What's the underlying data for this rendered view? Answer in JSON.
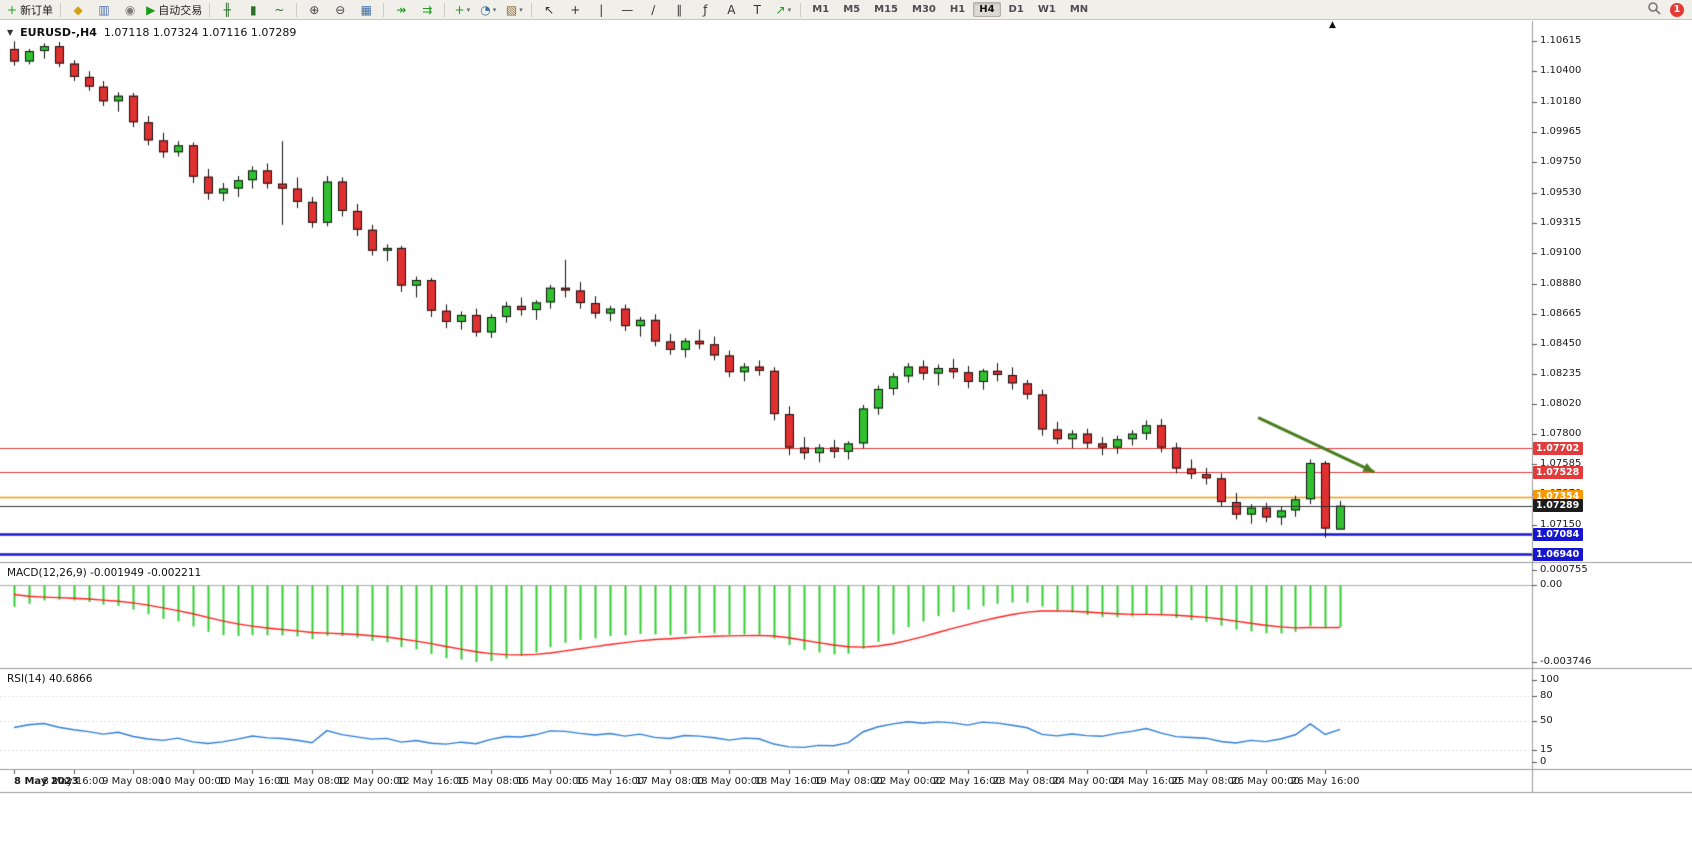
{
  "toolbar": {
    "groups": [
      {
        "items": [
          {
            "name": "new-order-button",
            "glyph": "+",
            "glyph_color": "#1a9c1a",
            "label": "新订单"
          }
        ]
      },
      {
        "items": [
          {
            "name": "market-watch-button",
            "glyph": "◆",
            "glyph_color": "#d4a017"
          },
          {
            "name": "data-window-button",
            "glyph": "▥",
            "glyph_color": "#4a6fb5"
          },
          {
            "name": "navigator-button",
            "glyph": "◉",
            "glyph_color": "#7a7a7a"
          },
          {
            "name": "autotrading-button",
            "glyph": "▶",
            "glyph_color": "#1a9c1a",
            "label": "自动交易"
          }
        ]
      },
      {
        "items": [
          {
            "name": "bar-chart-button",
            "glyph": "╫",
            "glyph_color": "#2a6f2a"
          },
          {
            "name": "candlestick-chart-button",
            "glyph": "▮",
            "glyph_color": "#2a6f2a"
          },
          {
            "name": "line-chart-button",
            "glyph": "~",
            "glyph_color": "#2a6f2a"
          }
        ]
      },
      {
        "items": [
          {
            "name": "zoom-in-button",
            "glyph": "⊕",
            "glyph_color": "#444444"
          },
          {
            "name": "zoom-out-button",
            "glyph": "⊖",
            "glyph_color": "#444444"
          },
          {
            "name": "tile-windows-button",
            "glyph": "▦",
            "glyph_color": "#3a6ea5"
          }
        ]
      },
      {
        "items": [
          {
            "name": "auto-scroll-button",
            "glyph": "↠",
            "glyph_color": "#1a9c1a"
          },
          {
            "name": "chart-shift-button",
            "glyph": "⇉",
            "glyph_color": "#1a9c1a"
          }
        ]
      },
      {
        "items": [
          {
            "name": "indicators-button",
            "glyph": "+",
            "glyph_color": "#1a9c1a",
            "caret": true
          },
          {
            "name": "periods-button",
            "glyph": "◔",
            "glyph_color": "#3a6ea5",
            "caret": true
          },
          {
            "name": "templates-button",
            "glyph": "▧",
            "glyph_color": "#8a6d3b",
            "caret": true
          }
        ]
      },
      {
        "items": [
          {
            "name": "cursor-button",
            "glyph": "↖",
            "glyph_color": "#333333"
          },
          {
            "name": "crosshair-button",
            "glyph": "+",
            "glyph_color": "#333333"
          },
          {
            "name": "vertical-line-button",
            "glyph": "|",
            "glyph_color": "#333333"
          },
          {
            "name": "horizontal-line-button",
            "glyph": "—",
            "glyph_color": "#333333"
          },
          {
            "name": "trendline-button",
            "glyph": "∕",
            "glyph_color": "#333333"
          },
          {
            "name": "channel-button",
            "glyph": "∥",
            "glyph_color": "#333333"
          },
          {
            "name": "fibonacci-button",
            "glyph": "ƒ",
            "glyph_color": "#333333"
          },
          {
            "name": "text-button",
            "glyph": "A",
            "glyph_color": "#333333"
          },
          {
            "name": "text-label-button",
            "glyph": "T",
            "glyph_color": "#333333"
          },
          {
            "name": "arrows-button",
            "glyph": "↗",
            "glyph_color": "#1a9c1a",
            "caret": true
          }
        ]
      }
    ],
    "timeframes": {
      "items": [
        "M1",
        "M5",
        "M15",
        "M30",
        "H1",
        "H4",
        "D1",
        "W1",
        "MN"
      ],
      "active": "H4"
    },
    "right": {
      "search_name": "search-button",
      "badge_label": "1",
      "badge_color": "#e53935"
    }
  },
  "chart": {
    "menu_icon": "▼",
    "shift_marker": "▲",
    "symbol_label": "EURUSD-,H4",
    "ohlc_label": "1.07118 1.07324 1.07116 1.07289",
    "price_axis_ticks": [
      "1.10615",
      "1.10400",
      "1.10180",
      "1.09965",
      "1.09750",
      "1.09530",
      "1.09315",
      "1.09100",
      "1.08880",
      "1.08665",
      "1.08450",
      "1.08235",
      "1.08020",
      "1.07800",
      "1.07585",
      "1.07370",
      "1.07150",
      "1.06935"
    ],
    "hlines": [
      {
        "price": 1.07702,
        "label": "1.07702",
        "color": "#e23b3b",
        "width": 1
      },
      {
        "price": 1.07528,
        "label": "1.07528",
        "color": "#e23b3b",
        "width": 1
      },
      {
        "price": 1.07354,
        "label": "1.07354",
        "color": "#ff9800",
        "width": 1.5
      },
      {
        "price": 1.07289,
        "label": "1.07289",
        "color": "#333333",
        "width": 1,
        "role": "current-price",
        "tag_color": "#1c1c1c"
      },
      {
        "price": 1.07084,
        "label": "1.07084",
        "color": "#1616cf",
        "width": 2.5
      },
      {
        "price": 1.0694,
        "label": "1.06940",
        "color": "#1616cf",
        "width": 2.5
      }
    ],
    "arrow_object": {
      "from_bar": 83.5,
      "from_price": 1.0792,
      "to_bar": 91.3,
      "to_price": 1.0753,
      "color": "#4a7d20"
    }
  },
  "chart_data": {
    "type": "candlestick",
    "symbol": "EURUSD",
    "timeframe": "H4",
    "title": "EURUSD-,H4 1.07118 1.07324 1.07116 1.07289",
    "price_range": {
      "top": 1.1071,
      "bottom": 1.069
    },
    "style": {
      "bull_color": "#30c030",
      "bear_color": "#e03030",
      "wick_color": "#111111"
    },
    "candles": [
      [
        1.1056,
        1.10615,
        1.1044,
        1.1047
      ],
      [
        1.1047,
        1.1056,
        1.1045,
        1.10545
      ],
      [
        1.10545,
        1.106,
        1.1049,
        1.1058
      ],
      [
        1.1058,
        1.1061,
        1.1043,
        1.10455
      ],
      [
        1.10455,
        1.1048,
        1.1033,
        1.1036
      ],
      [
        1.1036,
        1.104,
        1.1026,
        1.1029
      ],
      [
        1.1029,
        1.1033,
        1.1015,
        1.10185
      ],
      [
        1.10185,
        1.1025,
        1.1011,
        1.10225
      ],
      [
        1.10225,
        1.10245,
        1.1,
        1.10035
      ],
      [
        1.10035,
        1.1008,
        1.0987,
        1.09905
      ],
      [
        1.09905,
        1.0996,
        1.0978,
        1.0982
      ],
      [
        1.0982,
        1.099,
        1.0979,
        1.0987
      ],
      [
        1.0987,
        1.0989,
        1.096,
        1.09645
      ],
      [
        1.09645,
        1.097,
        1.0948,
        1.09525
      ],
      [
        1.09525,
        1.096,
        1.0947,
        1.0956
      ],
      [
        1.0956,
        1.0965,
        1.095,
        1.0962
      ],
      [
        1.0962,
        1.0972,
        1.0956,
        1.0969
      ],
      [
        1.0969,
        1.0974,
        1.0956,
        1.09595
      ],
      [
        1.09595,
        1.099,
        1.093,
        1.0956
      ],
      [
        1.0956,
        1.0964,
        1.0942,
        1.09465
      ],
      [
        1.09465,
        1.095,
        1.0928,
        1.09315
      ],
      [
        1.09315,
        1.0965,
        1.0929,
        1.0961
      ],
      [
        1.0961,
        1.0964,
        1.0936,
        1.094
      ],
      [
        1.094,
        1.0945,
        1.0922,
        1.09265
      ],
      [
        1.09265,
        1.093,
        1.0908,
        1.09115
      ],
      [
        1.09115,
        1.0916,
        1.0904,
        1.09135
      ],
      [
        1.09135,
        1.0915,
        1.0882,
        1.08865
      ],
      [
        1.08865,
        1.0893,
        1.0878,
        1.08905
      ],
      [
        1.08905,
        1.0892,
        1.0864,
        1.08685
      ],
      [
        1.08685,
        1.0873,
        1.0856,
        1.08605
      ],
      [
        1.08605,
        1.0868,
        1.0855,
        1.08655
      ],
      [
        1.08655,
        1.087,
        1.085,
        1.0853
      ],
      [
        1.0853,
        1.0866,
        1.0849,
        1.0864
      ],
      [
        1.0864,
        1.0875,
        1.086,
        1.0872
      ],
      [
        1.0872,
        1.0878,
        1.0865,
        1.0869
      ],
      [
        1.0869,
        1.0876,
        1.0862,
        1.08745
      ],
      [
        1.08745,
        1.0887,
        1.087,
        1.0885
      ],
      [
        1.0885,
        1.0905,
        1.0878,
        1.0883
      ],
      [
        1.0883,
        1.0889,
        1.087,
        1.0874
      ],
      [
        1.0874,
        1.0879,
        1.0863,
        1.08665
      ],
      [
        1.08665,
        1.0872,
        1.0861,
        1.087
      ],
      [
        1.087,
        1.0873,
        1.0854,
        1.08575
      ],
      [
        1.08575,
        1.0864,
        1.085,
        1.0862
      ],
      [
        1.0862,
        1.0866,
        1.0843,
        1.08465
      ],
      [
        1.08465,
        1.0852,
        1.0837,
        1.08405
      ],
      [
        1.08405,
        1.0849,
        1.0835,
        1.0847
      ],
      [
        1.0847,
        1.0855,
        1.0841,
        1.08445
      ],
      [
        1.08445,
        1.085,
        1.0833,
        1.08365
      ],
      [
        1.08365,
        1.084,
        1.0821,
        1.08245
      ],
      [
        1.08245,
        1.0831,
        1.0818,
        1.08285
      ],
      [
        1.08285,
        1.0833,
        1.0822,
        1.08255
      ],
      [
        1.08255,
        1.0828,
        1.079,
        1.07945
      ],
      [
        1.07945,
        1.08,
        1.0765,
        1.07705
      ],
      [
        1.07705,
        1.0778,
        1.0762,
        1.07665
      ],
      [
        1.07665,
        1.0773,
        1.076,
        1.07705
      ],
      [
        1.07705,
        1.0776,
        1.0763,
        1.07675
      ],
      [
        1.07675,
        1.0775,
        1.0762,
        1.07735
      ],
      [
        1.07735,
        1.0801,
        1.077,
        1.07985
      ],
      [
        1.07985,
        1.0815,
        1.0794,
        1.08125
      ],
      [
        1.08125,
        1.0824,
        1.0808,
        1.08215
      ],
      [
        1.08215,
        1.0831,
        1.0817,
        1.08285
      ],
      [
        1.08285,
        1.0833,
        1.0819,
        1.08235
      ],
      [
        1.08235,
        1.083,
        1.0815,
        1.08275
      ],
      [
        1.08275,
        1.0834,
        1.082,
        1.08245
      ],
      [
        1.08245,
        1.0829,
        1.0813,
        1.08175
      ],
      [
        1.08175,
        1.0827,
        1.0812,
        1.08255
      ],
      [
        1.08255,
        1.0831,
        1.0818,
        1.08225
      ],
      [
        1.08225,
        1.0828,
        1.0812,
        1.08165
      ],
      [
        1.08165,
        1.0819,
        1.0805,
        1.08085
      ],
      [
        1.08085,
        1.0812,
        1.0779,
        1.07835
      ],
      [
        1.07835,
        1.0789,
        1.0773,
        1.07765
      ],
      [
        1.07765,
        1.0783,
        1.077,
        1.07805
      ],
      [
        1.07805,
        1.0784,
        1.077,
        1.07735
      ],
      [
        1.07735,
        1.0778,
        1.0765,
        1.07705
      ],
      [
        1.07705,
        1.0779,
        1.0766,
        1.07765
      ],
      [
        1.07765,
        1.0783,
        1.0772,
        1.07805
      ],
      [
        1.07805,
        1.079,
        1.0776,
        1.07865
      ],
      [
        1.07865,
        1.0791,
        1.0767,
        1.07705
      ],
      [
        1.07705,
        1.0774,
        1.0752,
        1.07555
      ],
      [
        1.07555,
        1.0762,
        1.0748,
        1.07515
      ],
      [
        1.07515,
        1.0756,
        1.0744,
        1.07485
      ],
      [
        1.07485,
        1.0752,
        1.0728,
        1.07315
      ],
      [
        1.07315,
        1.0738,
        1.0719,
        1.07225
      ],
      [
        1.07225,
        1.073,
        1.0716,
        1.07275
      ],
      [
        1.07275,
        1.0731,
        1.0717,
        1.07205
      ],
      [
        1.07205,
        1.0728,
        1.0715,
        1.07255
      ],
      [
        1.07255,
        1.0736,
        1.0721,
        1.07335
      ],
      [
        1.07335,
        1.0762,
        1.073,
        1.07595
      ],
      [
        1.07595,
        1.0761,
        1.0706,
        1.07125
      ],
      [
        1.07118,
        1.07324,
        1.07116,
        1.07289
      ]
    ],
    "time_labels": {
      "every_n_bars": 4,
      "labels": [
        "8 May 2023",
        "8 May 16:00",
        "9 May 08:00",
        "10 May 00:00",
        "10 May 16:00",
        "11 May 08:00",
        "12 May 00:00",
        "12 May 16:00",
        "15 May 08:00",
        "16 May 00:00",
        "16 May 16:00",
        "17 May 08:00",
        "18 May 00:00",
        "18 May 16:00",
        "19 May 08:00",
        "22 May 00:00",
        "22 May 16:00",
        "23 May 08:00",
        "24 May 00:00",
        "24 May 16:00",
        "25 May 08:00",
        "26 May 00:00",
        "26 May 16:00"
      ]
    },
    "indicators": [
      {
        "type": "macd",
        "label": "MACD(12,26,9) -0.001949 -0.002211",
        "params": [
          12,
          26,
          9
        ],
        "current": {
          "macd": -0.001949,
          "signal": -0.002211
        },
        "axis": [
          "0.000755",
          "0.00",
          "-0.003746"
        ],
        "axis_values": [
          0.000755,
          0,
          -0.003746
        ],
        "histogram_color": "#32cd32",
        "signal_color": "#ff2020"
      },
      {
        "type": "rsi",
        "label": "RSI(14) 40.6866",
        "period": 14,
        "current": 40.6866,
        "axis": [
          "100",
          "80",
          "50",
          "15",
          "0"
        ],
        "axis_values": [
          100,
          80,
          50,
          15,
          0
        ],
        "levels": [
          80,
          50,
          15
        ],
        "line_color": "#2f7ed8"
      }
    ]
  }
}
